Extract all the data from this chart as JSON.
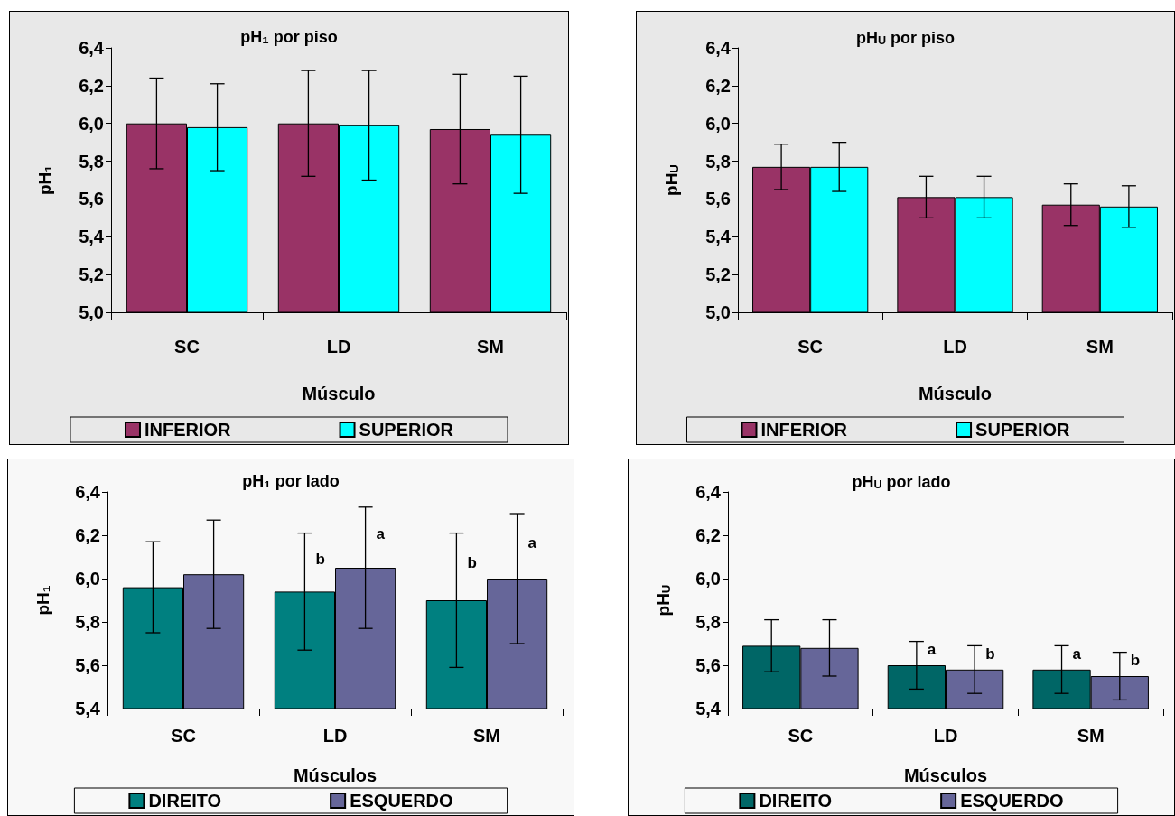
{
  "chart_data": [
    {
      "type": "bar",
      "title": "pH₁ por piso",
      "xlabel": "Músculo",
      "ylabel": "pH₁",
      "categories": [
        "SC",
        "LD",
        "SM"
      ],
      "ylim": [
        5.0,
        6.4
      ],
      "yticks": [
        {
          "value": 5.0,
          "label": "5,0"
        },
        {
          "value": 5.2,
          "label": "5,2"
        },
        {
          "value": 5.4,
          "label": "5,4"
        },
        {
          "value": 5.6,
          "label": "5,6"
        },
        {
          "value": 5.8,
          "label": "5,8"
        },
        {
          "value": 6.0,
          "label": "6,0"
        },
        {
          "value": 6.2,
          "label": "6,2"
        },
        {
          "value": 6.4,
          "label": "6,4"
        }
      ],
      "grid": false,
      "legend": "bottom",
      "series": [
        {
          "name": "INFERIOR",
          "color": "#993366",
          "values": [
            6.0,
            6.0,
            5.97
          ],
          "errors": [
            [
              5.76,
              6.24
            ],
            [
              5.72,
              6.28
            ],
            [
              5.68,
              6.26
            ]
          ]
        },
        {
          "name": "SUPERIOR",
          "color": "#00ffff",
          "values": [
            5.98,
            5.99,
            5.94
          ],
          "errors": [
            [
              5.75,
              6.21
            ],
            [
              5.7,
              6.28
            ],
            [
              5.63,
              6.25
            ]
          ]
        }
      ]
    },
    {
      "type": "bar",
      "title": "pH$_{U}$ por piso",
      "xlabel": "Músculo",
      "ylabel": "pH$_{U}$",
      "categories": [
        "SC",
        "LD",
        "SM"
      ],
      "ylim": [
        5.0,
        6.4
      ],
      "yticks": [
        {
          "value": 5.0,
          "label": "5,0"
        },
        {
          "value": 5.2,
          "label": "5,2"
        },
        {
          "value": 5.4,
          "label": "5,4"
        },
        {
          "value": 5.6,
          "label": "5,6"
        },
        {
          "value": 5.8,
          "label": "5,8"
        },
        {
          "value": 6.0,
          "label": "6,0"
        },
        {
          "value": 6.2,
          "label": "6,2"
        },
        {
          "value": 6.4,
          "label": "6,4"
        }
      ],
      "grid": false,
      "legend": "bottom",
      "series": [
        {
          "name": "INFERIOR",
          "color": "#993366",
          "values": [
            5.77,
            5.61,
            5.57
          ],
          "errors": [
            [
              5.65,
              5.89
            ],
            [
              5.5,
              5.72
            ],
            [
              5.46,
              5.68
            ]
          ]
        },
        {
          "name": "SUPERIOR",
          "color": "#00ffff",
          "values": [
            5.77,
            5.61,
            5.56
          ],
          "errors": [
            [
              5.64,
              5.9
            ],
            [
              5.5,
              5.72
            ],
            [
              5.45,
              5.67
            ]
          ]
        }
      ]
    },
    {
      "type": "bar",
      "title": "pH₁ por lado",
      "xlabel": "Músculos",
      "ylabel": "pH₁",
      "categories": [
        "SC",
        "LD",
        "SM"
      ],
      "ylim": [
        5.4,
        6.4
      ],
      "yticks": [
        {
          "value": 5.4,
          "label": "5,4"
        },
        {
          "value": 5.6,
          "label": "5,6"
        },
        {
          "value": 5.8,
          "label": "5,8"
        },
        {
          "value": 6.0,
          "label": "6,0"
        },
        {
          "value": 6.2,
          "label": "6,2"
        },
        {
          "value": 6.4,
          "label": "6,4"
        }
      ],
      "grid": false,
      "legend": "bottom",
      "series": [
        {
          "name": "DIREITO",
          "color": "#008080",
          "values": [
            5.96,
            5.94,
            5.9
          ],
          "errors": [
            [
              5.75,
              6.17
            ],
            [
              5.67,
              6.21
            ],
            [
              5.59,
              6.21
            ]
          ],
          "value_labels": [
            null,
            "b",
            "b"
          ]
        },
        {
          "name": "ESQUERDO",
          "color": "#666699",
          "values": [
            6.02,
            6.05,
            6.0
          ],
          "errors": [
            [
              5.77,
              6.27
            ],
            [
              5.77,
              6.33
            ],
            [
              5.7,
              6.3
            ]
          ],
          "value_labels": [
            null,
            "a",
            "a"
          ]
        }
      ]
    },
    {
      "type": "bar",
      "title": "pH$_{U}$ por lado",
      "xlabel": "Músculos",
      "ylabel": "pH$_{U}$",
      "categories": [
        "SC",
        "LD",
        "SM"
      ],
      "ylim": [
        5.4,
        6.4
      ],
      "yticks": [
        {
          "value": 5.4,
          "label": "5,4"
        },
        {
          "value": 5.6,
          "label": "5,6"
        },
        {
          "value": 5.8,
          "label": "5,8"
        },
        {
          "value": 6.0,
          "label": "6,0"
        },
        {
          "value": 6.2,
          "label": "6,2"
        },
        {
          "value": 6.4,
          "label": "6,4"
        }
      ],
      "grid": false,
      "legend": "bottom",
      "series": [
        {
          "name": "DIREITO",
          "color": "#006666",
          "values": [
            5.69,
            5.6,
            5.58
          ],
          "errors": [
            [
              5.57,
              5.81
            ],
            [
              5.49,
              5.71
            ],
            [
              5.47,
              5.69
            ]
          ],
          "value_labels": [
            null,
            "a",
            "a"
          ]
        },
        {
          "name": "ESQUERDO",
          "color": "#666699",
          "values": [
            5.68,
            5.58,
            5.55
          ],
          "errors": [
            [
              5.55,
              5.81
            ],
            [
              5.47,
              5.69
            ],
            [
              5.44,
              5.66
            ]
          ],
          "value_labels": [
            null,
            "b",
            "b"
          ]
        }
      ]
    }
  ]
}
